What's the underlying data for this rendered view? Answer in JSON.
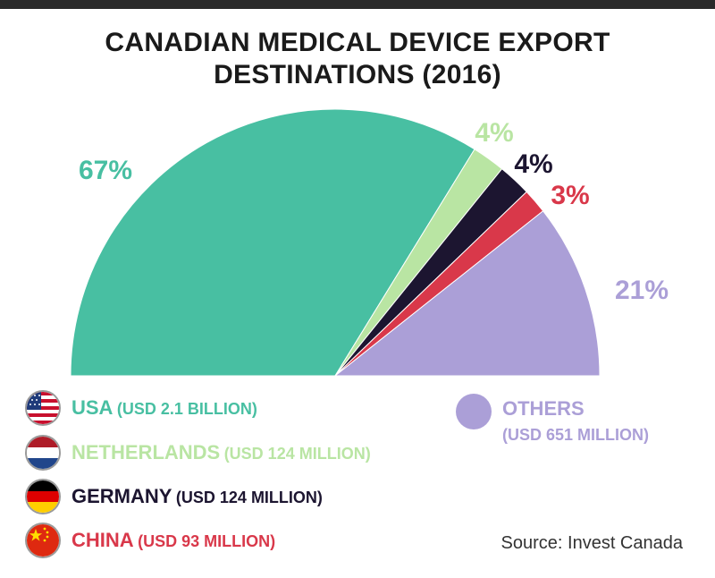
{
  "title_line1": "CANADIAN MEDICAL DEVICE EXPORT",
  "title_line2": "DESTINATIONS (2016)",
  "source": "Source: Invest Canada",
  "colors": {
    "usa": "#48bfa2",
    "netherlands": "#b9e5a3",
    "germany": "#1c1530",
    "china": "#d9384a",
    "others": "#ab9fd7"
  },
  "chart_data": {
    "type": "pie",
    "title": "CANADIAN MEDICAL DEVICE EXPORT DESTINATIONS (2016)",
    "subtype": "half-donut (semicircle)",
    "slices": [
      {
        "label": "USA",
        "value": 67,
        "value_label": "67%",
        "detail": "(USD 2.1 BILLION)",
        "color": "#48bfa2",
        "icon": "usa-flag-icon"
      },
      {
        "label": "NETHERLANDS",
        "value": 4,
        "value_label": "4%",
        "detail": "(USD 124 MILLION)",
        "color": "#b9e5a3",
        "icon": "netherlands-flag-icon"
      },
      {
        "label": "GERMANY",
        "value": 4,
        "value_label": "4%",
        "detail": "(USD 124 MILLION)",
        "color": "#1c1530",
        "icon": "germany-flag-icon"
      },
      {
        "label": "CHINA",
        "value": 3,
        "value_label": "3%",
        "detail": "(USD 93 MILLION)",
        "color": "#d9384a",
        "icon": "china-flag-icon"
      },
      {
        "label": "OTHERS",
        "value": 21,
        "value_label": "21%",
        "detail": "(USD 651 MILLION)",
        "color": "#ab9fd7",
        "icon": "others-dot-icon"
      }
    ]
  }
}
